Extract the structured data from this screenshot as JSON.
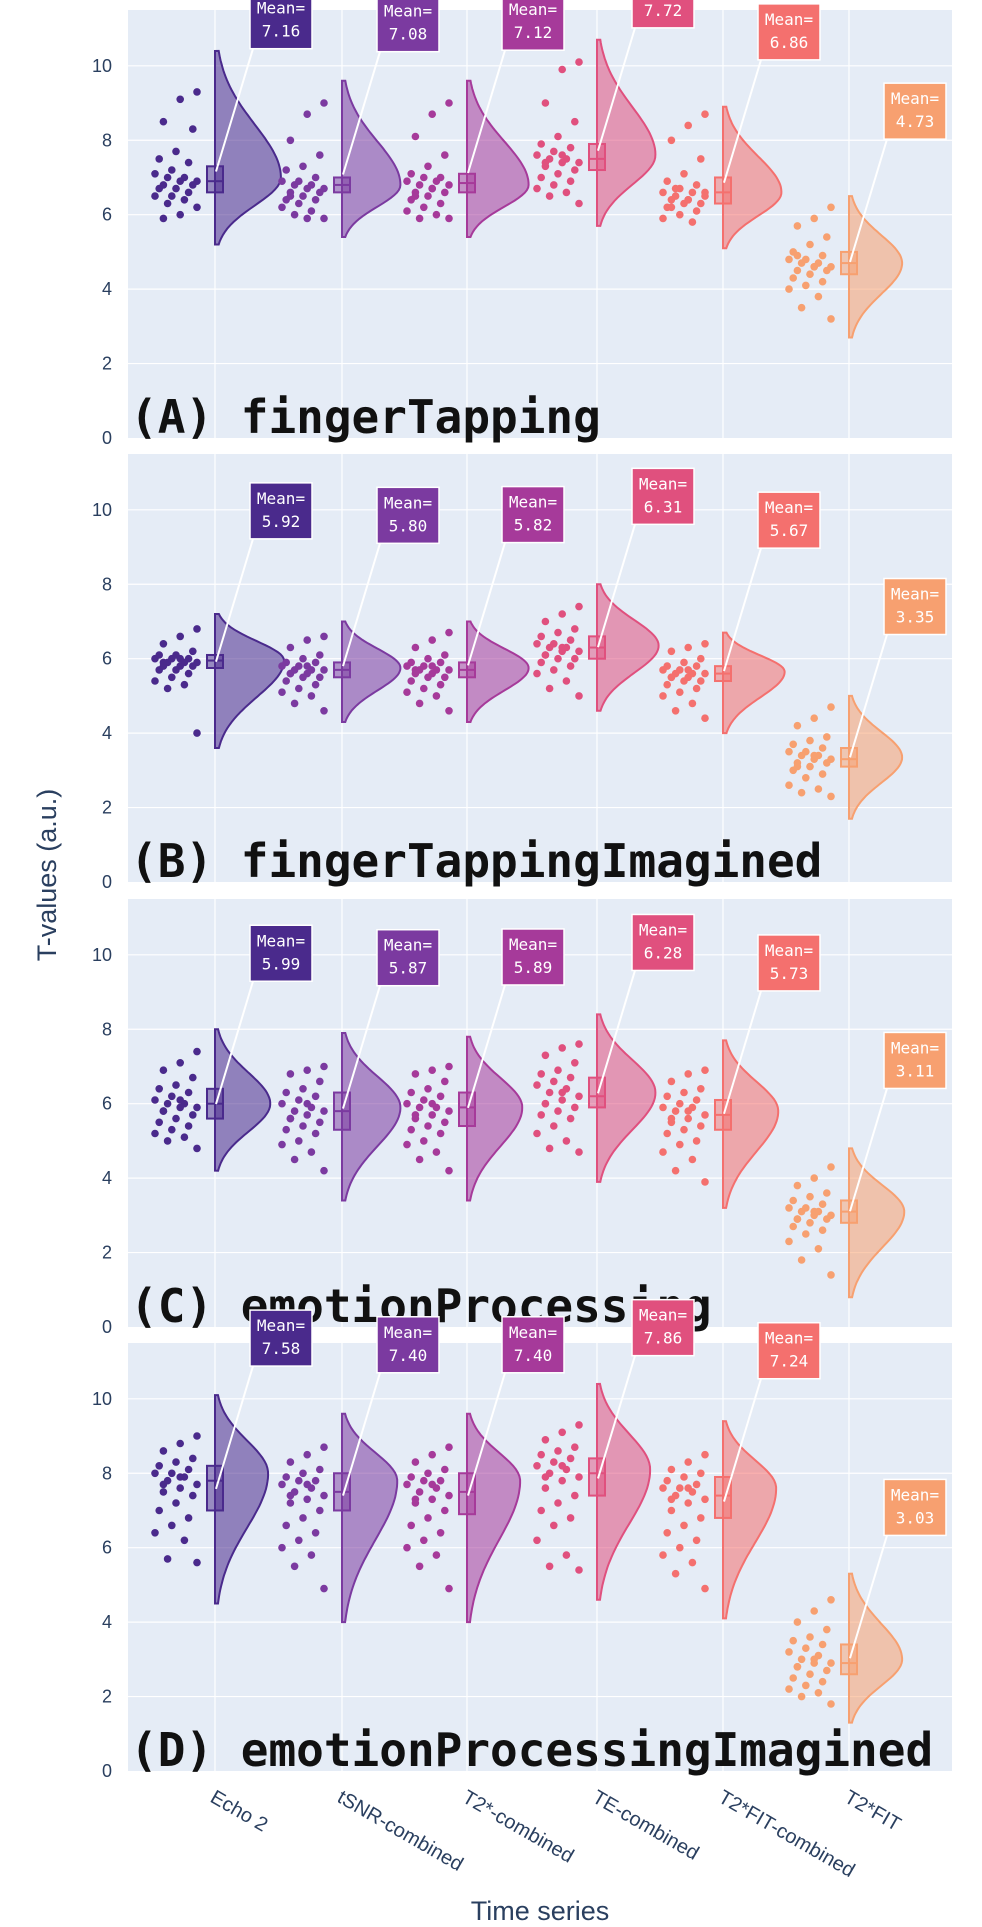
{
  "chart_data": {
    "type": "violin",
    "ylabel": "T-values (a.u.)",
    "xlabel": "Time series",
    "ylim": [
      0,
      11.5
    ],
    "yticks": [
      0,
      2,
      4,
      6,
      8,
      10
    ],
    "categories": [
      "Echo 2",
      "tSNR-combined",
      "T2*-combined",
      "TE-combined",
      "T2*FIT-combined",
      "T2*FIT"
    ],
    "colors": [
      "#4a2a8c",
      "#7b3aa0",
      "#a63a9a",
      "#e0507e",
      "#f4706e",
      "#f7a070"
    ],
    "annotation_prefix": "Mean=",
    "panels": [
      {
        "title": "(A) fingerTapping",
        "means": [
          "7.16",
          "7.08",
          "7.12",
          "7.72",
          "6.86",
          "4.73"
        ],
        "medians": [
          6.9,
          6.8,
          6.85,
          7.5,
          6.6,
          4.7
        ],
        "q1": [
          6.6,
          6.6,
          6.6,
          7.2,
          6.3,
          4.4
        ],
        "q3": [
          7.3,
          7.0,
          7.1,
          7.9,
          7.0,
          5.0
        ],
        "mins": [
          5.9,
          5.9,
          5.9,
          6.3,
          5.8,
          3.2
        ],
        "maxs": [
          9.3,
          9.0,
          9.0,
          10.0,
          8.6,
          6.2
        ],
        "kde_lo": [
          5.2,
          5.4,
          5.4,
          5.7,
          5.1,
          2.7
        ],
        "kde_hi": [
          10.4,
          9.6,
          9.6,
          10.7,
          8.9,
          6.5
        ],
        "kde_mode": [
          7.0,
          6.8,
          6.8,
          7.6,
          6.6,
          4.7
        ],
        "kde_width": [
          0.62,
          0.55,
          0.58,
          0.55,
          0.55,
          0.5
        ]
      },
      {
        "title": "(B) fingerTappingImagined",
        "means": [
          "5.92",
          "5.80",
          "5.82",
          "6.31",
          "5.67",
          "3.35"
        ],
        "medians": [
          5.95,
          5.7,
          5.7,
          6.3,
          5.6,
          3.3
        ],
        "q1": [
          5.75,
          5.5,
          5.5,
          6.0,
          5.4,
          3.1
        ],
        "q3": [
          6.1,
          5.9,
          5.9,
          6.6,
          5.8,
          3.6
        ],
        "mins": [
          4.0,
          4.6,
          4.6,
          5.0,
          4.4,
          2.3
        ],
        "maxs": [
          6.8,
          6.6,
          6.7,
          7.4,
          6.4,
          4.7
        ],
        "kde_lo": [
          3.6,
          4.3,
          4.3,
          4.6,
          4.0,
          1.7
        ],
        "kde_hi": [
          7.2,
          7.0,
          7.0,
          8.0,
          6.7,
          5.0
        ],
        "kde_mode": [
          5.95,
          5.75,
          5.75,
          6.35,
          5.65,
          3.35
        ],
        "kde_width": [
          0.65,
          0.55,
          0.58,
          0.58,
          0.58,
          0.5
        ]
      },
      {
        "title": "(C) emotionProcessing",
        "means": [
          "5.99",
          "5.87",
          "5.89",
          "6.28",
          "5.73",
          "3.11"
        ],
        "medians": [
          6.0,
          5.8,
          5.9,
          6.2,
          5.7,
          3.1
        ],
        "q1": [
          5.6,
          5.3,
          5.4,
          5.9,
          5.3,
          2.8
        ],
        "q3": [
          6.4,
          6.3,
          6.3,
          6.7,
          6.1,
          3.4
        ],
        "mins": [
          4.8,
          4.2,
          4.2,
          4.7,
          3.9,
          1.4
        ],
        "maxs": [
          7.4,
          7.0,
          7.0,
          7.6,
          6.9,
          4.3
        ],
        "kde_lo": [
          4.2,
          3.4,
          3.4,
          3.9,
          3.2,
          0.8
        ],
        "kde_hi": [
          8.0,
          7.9,
          7.8,
          8.4,
          7.7,
          4.8
        ],
        "kde_mode": [
          6.0,
          5.9,
          5.9,
          6.3,
          5.8,
          3.1
        ],
        "kde_width": [
          0.52,
          0.55,
          0.52,
          0.55,
          0.52,
          0.52
        ]
      },
      {
        "title": "(D) emotionProcessingImagined",
        "means": [
          "7.58",
          "7.40",
          "7.40",
          "7.86",
          "7.24",
          "3.03"
        ],
        "medians": [
          7.8,
          7.5,
          7.5,
          8.0,
          7.4,
          2.9
        ],
        "q1": [
          7.0,
          7.0,
          6.9,
          7.4,
          6.8,
          2.6
        ],
        "q3": [
          8.2,
          8.0,
          8.0,
          8.4,
          7.9,
          3.4
        ],
        "mins": [
          5.6,
          4.9,
          4.9,
          5.4,
          4.9,
          1.8
        ],
        "maxs": [
          9.0,
          8.7,
          8.7,
          9.3,
          8.5,
          4.6
        ],
        "kde_lo": [
          4.5,
          4.0,
          4.0,
          4.6,
          4.1,
          1.3
        ],
        "kde_hi": [
          10.1,
          9.6,
          9.6,
          10.4,
          9.4,
          5.3
        ],
        "kde_mode": [
          8.0,
          7.8,
          7.8,
          8.1,
          7.6,
          3.0
        ],
        "kde_width": [
          0.5,
          0.52,
          0.5,
          0.5,
          0.5,
          0.5
        ]
      }
    ],
    "points": [
      [
        [
          9.3,
          9.1,
          8.5,
          8.3,
          7.7,
          7.5,
          7.4,
          7.2,
          7.1,
          7.0,
          7.0,
          6.9,
          6.9,
          6.8,
          6.8,
          6.7,
          6.7,
          6.6,
          6.5,
          6.5,
          6.4,
          6.3,
          6.2,
          6.0,
          5.9
        ],
        [
          9.0,
          8.7,
          8.0,
          7.6,
          7.3,
          7.2,
          7.0,
          6.9,
          6.9,
          6.8,
          6.8,
          6.7,
          6.7,
          6.6,
          6.6,
          6.5,
          6.4,
          6.4,
          6.3,
          6.2,
          6.1,
          6.0,
          5.9,
          5.9,
          6.5
        ],
        [
          9.0,
          8.7,
          8.1,
          7.6,
          7.3,
          7.1,
          7.0,
          7.0,
          6.9,
          6.9,
          6.8,
          6.8,
          6.7,
          6.6,
          6.6,
          6.5,
          6.4,
          6.3,
          6.2,
          6.1,
          6.0,
          5.9,
          5.9,
          6.7,
          6.5
        ],
        [
          10.1,
          9.9,
          9.0,
          8.5,
          8.1,
          7.9,
          7.8,
          7.7,
          7.6,
          7.5,
          7.5,
          7.4,
          7.4,
          7.3,
          7.2,
          7.1,
          7.0,
          6.9,
          6.8,
          6.7,
          6.6,
          6.5,
          6.3,
          7.6,
          7.4
        ],
        [
          8.7,
          8.4,
          8.0,
          7.5,
          7.1,
          6.9,
          6.8,
          6.7,
          6.6,
          6.6,
          6.5,
          6.5,
          6.4,
          6.4,
          6.3,
          6.3,
          6.2,
          6.1,
          6.0,
          5.9,
          5.8,
          6.7,
          6.6,
          6.4,
          6.2
        ],
        [
          6.2,
          5.9,
          5.7,
          5.4,
          5.2,
          5.0,
          4.9,
          4.8,
          4.8,
          4.7,
          4.7,
          4.6,
          4.6,
          4.5,
          4.5,
          4.4,
          4.3,
          4.2,
          4.1,
          4.0,
          3.8,
          3.5,
          3.2,
          4.6,
          4.9
        ]
      ],
      [
        [
          6.8,
          6.6,
          6.4,
          6.2,
          6.1,
          6.1,
          6.0,
          6.0,
          6.0,
          5.9,
          5.9,
          5.9,
          5.8,
          5.8,
          5.8,
          5.7,
          5.7,
          5.6,
          5.5,
          5.4,
          5.3,
          5.2,
          4.0,
          6.0,
          5.9
        ],
        [
          6.6,
          6.5,
          6.3,
          6.1,
          6.0,
          5.9,
          5.9,
          5.8,
          5.8,
          5.7,
          5.7,
          5.7,
          5.6,
          5.6,
          5.5,
          5.5,
          5.4,
          5.3,
          5.2,
          5.1,
          5.0,
          4.8,
          4.6,
          5.8,
          5.6
        ],
        [
          6.7,
          6.5,
          6.3,
          6.1,
          6.0,
          5.9,
          5.9,
          5.8,
          5.8,
          5.7,
          5.7,
          5.7,
          5.6,
          5.6,
          5.5,
          5.5,
          5.4,
          5.3,
          5.2,
          5.1,
          5.0,
          4.8,
          4.6,
          5.8,
          5.7
        ],
        [
          7.4,
          7.2,
          7.0,
          6.8,
          6.7,
          6.6,
          6.5,
          6.4,
          6.4,
          6.3,
          6.3,
          6.2,
          6.2,
          6.1,
          6.0,
          6.0,
          5.9,
          5.8,
          5.7,
          5.6,
          5.4,
          5.2,
          5.0,
          6.3,
          6.1
        ],
        [
          6.4,
          6.3,
          6.2,
          6.0,
          5.9,
          5.8,
          5.8,
          5.7,
          5.7,
          5.6,
          5.6,
          5.6,
          5.5,
          5.5,
          5.4,
          5.4,
          5.3,
          5.2,
          5.1,
          5.0,
          4.8,
          4.6,
          4.4,
          5.7,
          5.5
        ],
        [
          4.7,
          4.4,
          4.2,
          3.9,
          3.8,
          3.7,
          3.6,
          3.5,
          3.5,
          3.4,
          3.4,
          3.3,
          3.3,
          3.2,
          3.2,
          3.1,
          3.0,
          2.9,
          2.8,
          2.6,
          2.5,
          2.4,
          2.3,
          3.4,
          3.1
        ]
      ],
      [
        [
          7.4,
          7.1,
          6.9,
          6.7,
          6.5,
          6.4,
          6.3,
          6.2,
          6.1,
          6.0,
          6.0,
          5.9,
          5.9,
          5.8,
          5.7,
          5.6,
          5.5,
          5.4,
          5.3,
          5.2,
          5.1,
          5.0,
          4.8,
          6.1,
          5.8
        ],
        [
          7.0,
          6.9,
          6.8,
          6.6,
          6.4,
          6.3,
          6.2,
          6.1,
          6.0,
          5.9,
          5.8,
          5.8,
          5.7,
          5.6,
          5.5,
          5.4,
          5.3,
          5.2,
          5.0,
          4.9,
          4.7,
          4.5,
          4.2,
          6.0,
          5.6
        ],
        [
          7.0,
          6.9,
          6.8,
          6.6,
          6.4,
          6.3,
          6.2,
          6.1,
          6.0,
          5.9,
          5.9,
          5.8,
          5.7,
          5.6,
          5.5,
          5.4,
          5.3,
          5.2,
          5.0,
          4.9,
          4.7,
          4.5,
          4.2,
          6.0,
          5.7
        ],
        [
          7.6,
          7.5,
          7.3,
          7.1,
          6.9,
          6.8,
          6.7,
          6.6,
          6.5,
          6.4,
          6.3,
          6.2,
          6.1,
          6.0,
          5.9,
          5.8,
          5.7,
          5.6,
          5.4,
          5.2,
          5.0,
          4.8,
          4.7,
          6.3,
          6.0
        ],
        [
          6.9,
          6.8,
          6.6,
          6.4,
          6.3,
          6.2,
          6.1,
          6.0,
          5.9,
          5.9,
          5.8,
          5.7,
          5.6,
          5.5,
          5.4,
          5.3,
          5.2,
          5.0,
          4.9,
          4.7,
          4.5,
          4.2,
          3.9,
          5.8,
          5.6
        ],
        [
          4.3,
          4.0,
          3.8,
          3.6,
          3.5,
          3.4,
          3.3,
          3.2,
          3.2,
          3.1,
          3.1,
          3.0,
          3.0,
          2.9,
          2.9,
          2.8,
          2.7,
          2.6,
          2.5,
          2.3,
          2.1,
          1.8,
          1.4,
          3.1,
          2.9
        ]
      ],
      [
        [
          9.0,
          8.8,
          8.6,
          8.4,
          8.3,
          8.2,
          8.1,
          8.0,
          8.0,
          7.9,
          7.8,
          7.7,
          7.6,
          7.5,
          7.4,
          7.2,
          7.0,
          6.8,
          6.6,
          6.4,
          6.2,
          5.7,
          5.6,
          7.9,
          7.7
        ],
        [
          8.7,
          8.5,
          8.3,
          8.1,
          8.0,
          7.9,
          7.8,
          7.8,
          7.7,
          7.6,
          7.5,
          7.4,
          7.3,
          7.2,
          7.0,
          6.8,
          6.6,
          6.4,
          6.2,
          6.0,
          5.8,
          5.5,
          4.9,
          7.7,
          7.4
        ],
        [
          8.7,
          8.5,
          8.3,
          8.1,
          8.0,
          7.9,
          7.8,
          7.8,
          7.7,
          7.6,
          7.5,
          7.4,
          7.3,
          7.2,
          7.0,
          6.8,
          6.6,
          6.4,
          6.2,
          6.0,
          5.8,
          5.5,
          4.9,
          7.7,
          7.3
        ],
        [
          9.3,
          9.1,
          8.9,
          8.7,
          8.6,
          8.5,
          8.4,
          8.3,
          8.2,
          8.1,
          8.0,
          7.9,
          7.8,
          7.6,
          7.4,
          7.2,
          7.0,
          6.8,
          6.6,
          6.2,
          5.8,
          5.5,
          5.4,
          8.2,
          7.9
        ],
        [
          8.5,
          8.3,
          8.1,
          8.0,
          7.9,
          7.8,
          7.7,
          7.6,
          7.6,
          7.5,
          7.4,
          7.3,
          7.2,
          7.0,
          6.8,
          6.6,
          6.4,
          6.2,
          6.0,
          5.8,
          5.6,
          5.3,
          4.9,
          7.6,
          7.3
        ],
        [
          4.6,
          4.3,
          4.0,
          3.8,
          3.6,
          3.5,
          3.4,
          3.3,
          3.2,
          3.1,
          3.0,
          2.9,
          2.9,
          2.8,
          2.7,
          2.6,
          2.5,
          2.4,
          2.3,
          2.2,
          2.1,
          2.0,
          1.8,
          3.0,
          2.8
        ]
      ]
    ]
  }
}
